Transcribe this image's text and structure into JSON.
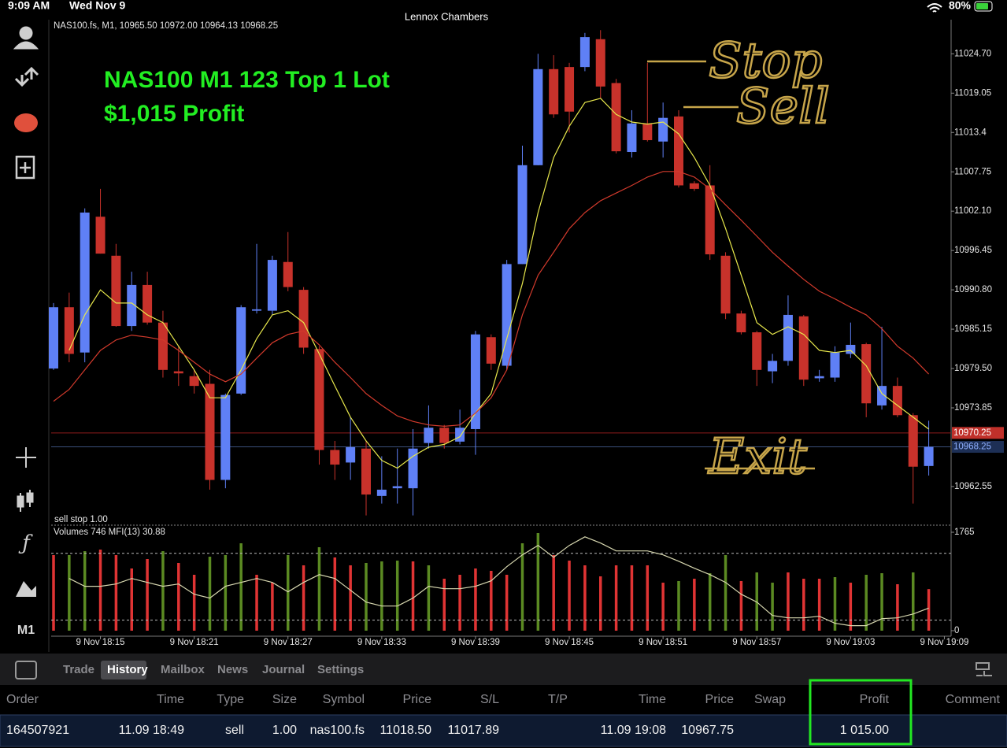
{
  "status_bar": {
    "time": "9:09 AM",
    "date": "Wed Nov 9",
    "battery": "80%",
    "title": "Lennox Chambers"
  },
  "chart_data": {
    "type": "candlestick",
    "header": "NAS100.fs, M1, 10965.50 10972.00 10964.13 10968.25",
    "annotations": [
      "NAS100 M1 123 Top 1 Lot",
      "$1,015 Profit"
    ],
    "handwriting": [
      "Stop",
      "Sell",
      "Exit"
    ],
    "order_label": "sell stop 1.00",
    "up_color": "#5f80f6",
    "down_color": "#c8322b",
    "ylim": [
      10957.0,
      11029.6
    ],
    "yticks": [
      {
        "value": 11024.7,
        "label": "11024.70"
      },
      11019.05,
      11013.4,
      11007.75,
      {
        "value": 11002.1,
        "label": "11002.10"
      },
      10996.45,
      {
        "value": 10990.8,
        "label": "10990.80"
      },
      10985.15,
      {
        "value": 10979.5,
        "label": "10979.50"
      },
      10973.85,
      10962.55
    ],
    "xticks": [
      {
        "value": 3,
        "label": "9 Nov 18:15"
      },
      {
        "value": 9,
        "label": "9 Nov 18:21"
      },
      {
        "value": 15,
        "label": "9 Nov 18:27"
      },
      {
        "value": 21,
        "label": "9 Nov 18:33"
      },
      {
        "value": 27,
        "label": "9 Nov 18:39"
      },
      {
        "value": 33,
        "label": "9 Nov 18:45"
      },
      {
        "value": 39,
        "label": "9 Nov 18:51"
      },
      {
        "value": 45,
        "label": "9 Nov 18:57"
      },
      {
        "value": 51,
        "label": "9 Nov 19:03"
      },
      {
        "value": 57,
        "label": "9 Nov 19:09"
      }
    ],
    "price_lines": [
      {
        "value": 10970.25,
        "color": "#8e1d1d",
        "badge": "#c0302a",
        "text": "#ffffff"
      },
      {
        "value": 10968.25,
        "color": "#3a4f7a",
        "badge": "#1d2f55",
        "text": "#8fb0ff"
      }
    ],
    "candles": [
      {
        "open": 10979.5,
        "high": 10988.9,
        "low": 10979.3,
        "close": 10988.3
      },
      {
        "open": 10988.3,
        "high": 10990.4,
        "low": 10980.4,
        "close": 10981.6
      },
      {
        "open": 10981.8,
        "high": 11002.5,
        "low": 10980.4,
        "close": 11001.9
      },
      {
        "open": 11001.3,
        "high": 11005.3,
        "low": 10996.0,
        "close": 10996.0
      },
      {
        "open": 10995.7,
        "high": 10997.4,
        "low": 10985.5,
        "close": 10985.6
      },
      {
        "open": 10985.6,
        "high": 10993.4,
        "low": 10984.9,
        "close": 10991.5
      },
      {
        "open": 10991.5,
        "high": 10993.4,
        "low": 10985.8,
        "close": 10986.1
      },
      {
        "open": 10986.1,
        "high": 10987.8,
        "low": 10978.2,
        "close": 10979.3
      },
      {
        "open": 10979.1,
        "high": 10982.7,
        "low": 10977.0,
        "close": 10978.8
      },
      {
        "open": 10978.4,
        "high": 10979.3,
        "low": 10975.9,
        "close": 10977.0
      },
      {
        "open": 10977.3,
        "high": 10979.3,
        "low": 10962.1,
        "close": 10963.5
      },
      {
        "open": 10963.5,
        "high": 10975.9,
        "low": 10962.3,
        "close": 10975.7
      },
      {
        "open": 10975.9,
        "high": 10988.6,
        "low": 10975.7,
        "close": 10988.3
      },
      {
        "open": 10987.8,
        "high": 10997.4,
        "low": 10987.4,
        "close": 10988.0
      },
      {
        "open": 10987.8,
        "high": 10995.7,
        "low": 10987.2,
        "close": 10995.1
      },
      {
        "open": 10994.8,
        "high": 10999.1,
        "low": 10990.6,
        "close": 10991.2
      },
      {
        "open": 10990.8,
        "high": 10991.2,
        "low": 10981.6,
        "close": 10982.5
      },
      {
        "open": 10982.3,
        "high": 10982.7,
        "low": 10965.7,
        "close": 10967.8
      },
      {
        "open": 10967.8,
        "high": 10969.1,
        "low": 10963.5,
        "close": 10965.7
      },
      {
        "open": 10966.0,
        "high": 10972.5,
        "low": 10963.5,
        "close": 10968.2
      },
      {
        "open": 10968.0,
        "high": 10969.1,
        "low": 10958.4,
        "close": 10961.4
      },
      {
        "open": 10961.2,
        "high": 10966.9,
        "low": 10960.1,
        "close": 10962.1
      },
      {
        "open": 10962.3,
        "high": 10968.0,
        "low": 10960.1,
        "close": 10962.6
      },
      {
        "open": 10962.3,
        "high": 10970.8,
        "low": 10958.4,
        "close": 10968.0
      },
      {
        "open": 10968.8,
        "high": 10974.2,
        "low": 10968.0,
        "close": 10971.0
      },
      {
        "open": 10971.0,
        "high": 10971.4,
        "low": 10968.0,
        "close": 10968.8
      },
      {
        "open": 10969.0,
        "high": 10973.6,
        "low": 10968.6,
        "close": 10971.0
      },
      {
        "open": 10970.8,
        "high": 10984.9,
        "low": 10967.1,
        "close": 10984.4
      },
      {
        "open": 10984.0,
        "high": 10984.4,
        "low": 10979.3,
        "close": 10980.2
      },
      {
        "open": 10979.9,
        "high": 10995.1,
        "low": 10979.3,
        "close": 10994.5
      },
      {
        "open": 10994.5,
        "high": 11011.5,
        "low": 10994.5,
        "close": 11008.7
      },
      {
        "open": 11008.7,
        "high": 11024.7,
        "low": 11008.7,
        "close": 11022.5
      },
      {
        "open": 11022.5,
        "high": 11024.5,
        "low": 11015.5,
        "close": 11016.0
      },
      {
        "open": 11022.8,
        "high": 11023.4,
        "low": 11013.4,
        "close": 11016.4
      },
      {
        "open": 11022.8,
        "high": 11027.7,
        "low": 11022.2,
        "close": 11027.1
      },
      {
        "open": 11026.8,
        "high": 11028.1,
        "low": 11018.3,
        "close": 11020.0
      },
      {
        "open": 11020.5,
        "high": 11021.1,
        "low": 11010.4,
        "close": 11010.7
      },
      {
        "open": 11010.6,
        "high": 11016.6,
        "low": 11009.8,
        "close": 11014.7
      },
      {
        "open": 11014.7,
        "high": 11023.4,
        "low": 11012.1,
        "close": 11012.3
      },
      {
        "open": 11012.1,
        "high": 11017.7,
        "low": 11009.8,
        "close": 11015.5
      },
      {
        "open": 11015.7,
        "high": 11016.6,
        "low": 11005.5,
        "close": 11005.8
      },
      {
        "open": 11006.1,
        "high": 11006.4,
        "low": 11005.0,
        "close": 11005.3
      },
      {
        "open": 11005.8,
        "high": 11008.7,
        "low": 10995.1,
        "close": 10995.9
      },
      {
        "open": 10995.7,
        "high": 10996.2,
        "low": 10986.6,
        "close": 10987.4
      },
      {
        "open": 10987.4,
        "high": 10987.8,
        "low": 10984.4,
        "close": 10984.7
      },
      {
        "open": 10984.7,
        "high": 10984.9,
        "low": 10977.0,
        "close": 10979.3
      },
      {
        "open": 10979.1,
        "high": 10981.6,
        "low": 10977.4,
        "close": 10980.6
      },
      {
        "open": 10980.6,
        "high": 10990.0,
        "low": 10979.9,
        "close": 10987.2
      },
      {
        "open": 10987.0,
        "high": 10987.2,
        "low": 10977.0,
        "close": 10977.9
      },
      {
        "open": 10978.1,
        "high": 10979.3,
        "low": 10977.6,
        "close": 10978.4
      },
      {
        "open": 10978.2,
        "high": 10982.7,
        "low": 10977.6,
        "close": 10981.8
      },
      {
        "open": 10981.6,
        "high": 10986.1,
        "low": 10981.0,
        "close": 10982.9
      },
      {
        "open": 10983.0,
        "high": 10983.2,
        "low": 10972.5,
        "close": 10974.5
      },
      {
        "open": 10974.2,
        "high": 10985.5,
        "low": 10973.6,
        "close": 10977.0
      },
      {
        "open": 10977.0,
        "high": 10978.2,
        "low": 10972.5,
        "close": 10972.8
      },
      {
        "open": 10972.8,
        "high": 10973.1,
        "low": 10960.1,
        "close": 10965.4
      },
      {
        "open": 10965.5,
        "high": 10972.0,
        "low": 10964.13,
        "close": 10968.25
      }
    ],
    "series": [
      {
        "color": "#e8e84c",
        "values": [
          null,
          10982.1,
          10987.2,
          10990.8,
          10988.9,
          10988.9,
          10987.2,
          10986.1,
          10982.7,
          10979.3,
          10975.3,
          10975.3,
          10979.3,
          10983.8,
          10987.2,
          10987.8,
          10986.1,
          10981.6,
          10977.0,
          10972.5,
          10969.1,
          10966.3,
          10965.2,
          10966.9,
          10968.2,
          10968.6,
          10969.7,
          10973.1,
          10975.9,
          10983.8,
          10991.7,
          11001.9,
          11009.8,
          11014.3,
          11017.7,
          11018.3,
          11016.0,
          11014.9,
          11014.6,
          11014.9,
          11013.2,
          11009.8,
          11005.8,
          10999.6,
          10992.9,
          10986.1,
          10984.4,
          10985.5,
          10984.4,
          10982.1,
          10981.8,
          10982.1,
          10979.9,
          10975.9,
          10974.2,
          10972.5,
          10970.8
        ]
      },
      {
        "color": "#d23a2c",
        "values": [
          10974.8,
          10976.5,
          10979.3,
          10982.1,
          10983.6,
          10984.3,
          10984.0,
          10983.6,
          10982.1,
          10980.4,
          10978.7,
          10977.6,
          10978.7,
          10981.0,
          10983.2,
          10984.4,
          10984.9,
          10982.9,
          10980.4,
          10978.2,
          10975.9,
          10974.2,
          10972.7,
          10971.9,
          10971.4,
          10971.2,
          10971.4,
          10973.1,
          10975.3,
          10979.3,
          10987.2,
          10992.9,
          10996.2,
          10999.6,
          11001.9,
          11003.6,
          11004.7,
          11005.8,
          11007.0,
          11007.8,
          11007.8,
          11007.0,
          11005.3,
          11003.0,
          11000.8,
          10998.5,
          10996.2,
          10994.2,
          10992.3,
          10990.6,
          10989.5,
          10988.3,
          10987.2,
          10985.2,
          10982.7,
          10981.0,
          10978.7
        ]
      }
    ],
    "volume": {
      "header": "Volumes 746 MFI(13) 30.88",
      "ylim": [
        0,
        1765
      ],
      "yticks": [
        0,
        1765
      ],
      "values": [
        1356,
        1356,
        1426,
        1454,
        1356,
        1115,
        1285,
        1426,
        1214,
        1003,
        1327,
        1356,
        1567,
        1003,
        861,
        1356,
        1172,
        1497,
        1313,
        1172,
        1214,
        1243,
        1257,
        1243,
        1172,
        932,
        1003,
        1115,
        1073,
        1003,
        1567,
        1751,
        1356,
        1257,
        1172,
        974,
        1172,
        1172,
        1172,
        861,
        890,
        932,
        1031,
        1356,
        890,
        1045,
        861,
        1045,
        932,
        932,
        960,
        861,
        1003,
        1031,
        833,
        1045,
        746
      ],
      "colors": [
        "#e03434",
        "#5b8a22",
        "#5b8a22",
        "#e03434",
        "#e03434",
        "#e03434",
        "#e03434",
        "#5b8a22",
        "#e03434",
        "#e03434",
        "#5b8a22",
        "#5b8a22",
        "#5b8a22",
        "#e03434",
        "#e03434",
        "#5b8a22",
        "#e03434",
        "#5b8a22",
        "#e03434",
        "#e03434",
        "#5b8a22",
        "#5b8a22",
        "#5b8a22",
        "#e03434",
        "#5b8a22",
        "#e03434",
        "#e03434",
        "#e03434",
        "#e03434",
        "#e03434",
        "#5b8a22",
        "#5b8a22",
        "#e03434",
        "#e03434",
        "#e03434",
        "#e03434",
        "#e03434",
        "#e03434",
        "#e03434",
        "#e03434",
        "#5b8a22",
        "#e03434",
        "#5b8a22",
        "#5b8a22",
        "#e03434",
        "#5b8a22",
        "#5b8a22",
        "#e03434",
        "#e03434",
        "#e03434",
        "#5b8a22",
        "#e03434",
        "#5b8a22",
        "#5b8a22",
        "#e03434",
        "#5b8a22",
        "#e03434"
      ],
      "mfi_lim": [
        0,
        100
      ],
      "mfi_levels": [
        20,
        80
      ],
      "mfi_color": "#d8d8b0",
      "mfi": [
        null,
        57.4,
        50.4,
        50.4,
        52.5,
        57.4,
        53.9,
        50.4,
        52.5,
        43.3,
        39.8,
        50.4,
        53.9,
        57.4,
        53.9,
        45.4,
        53.9,
        60.9,
        57.4,
        46.8,
        36.2,
        32.7,
        32.7,
        39.8,
        50.4,
        48.2,
        48.2,
        50.4,
        55.3,
        68.0,
        78.6,
        87.1,
        76.5,
        87.1,
        94.8,
        89.2,
        82.1,
        82.1,
        82.1,
        78.6,
        72.9,
        66.6,
        60.9,
        53.9,
        43.3,
        36.2,
        24.2,
        22.1,
        22.1,
        23.5,
        17.2,
        15.1,
        15.1,
        21.4,
        22.1,
        25.6,
        30.88
      ]
    }
  },
  "sidebar": {
    "timeframe": "M1"
  },
  "terminal": {
    "tabs": [
      "Trade",
      "History",
      "Mailbox",
      "News",
      "Journal",
      "Settings"
    ],
    "active_tab": 1,
    "columns": [
      "Order",
      "Time",
      "Type",
      "Size",
      "Symbol",
      "Price",
      "S/L",
      "T/P",
      "Time",
      "Price",
      "Swap",
      "Profit",
      "Comment"
    ],
    "row": {
      "order": "164507921",
      "open_time": "11.09 18:49",
      "type": "sell",
      "size": "1.00",
      "symbol": "nas100.fs",
      "open_price": "11018.50",
      "sl": "11017.89",
      "close_time": "11.09 19:08",
      "close_price": "10967.75",
      "profit": "1 015.00"
    }
  }
}
